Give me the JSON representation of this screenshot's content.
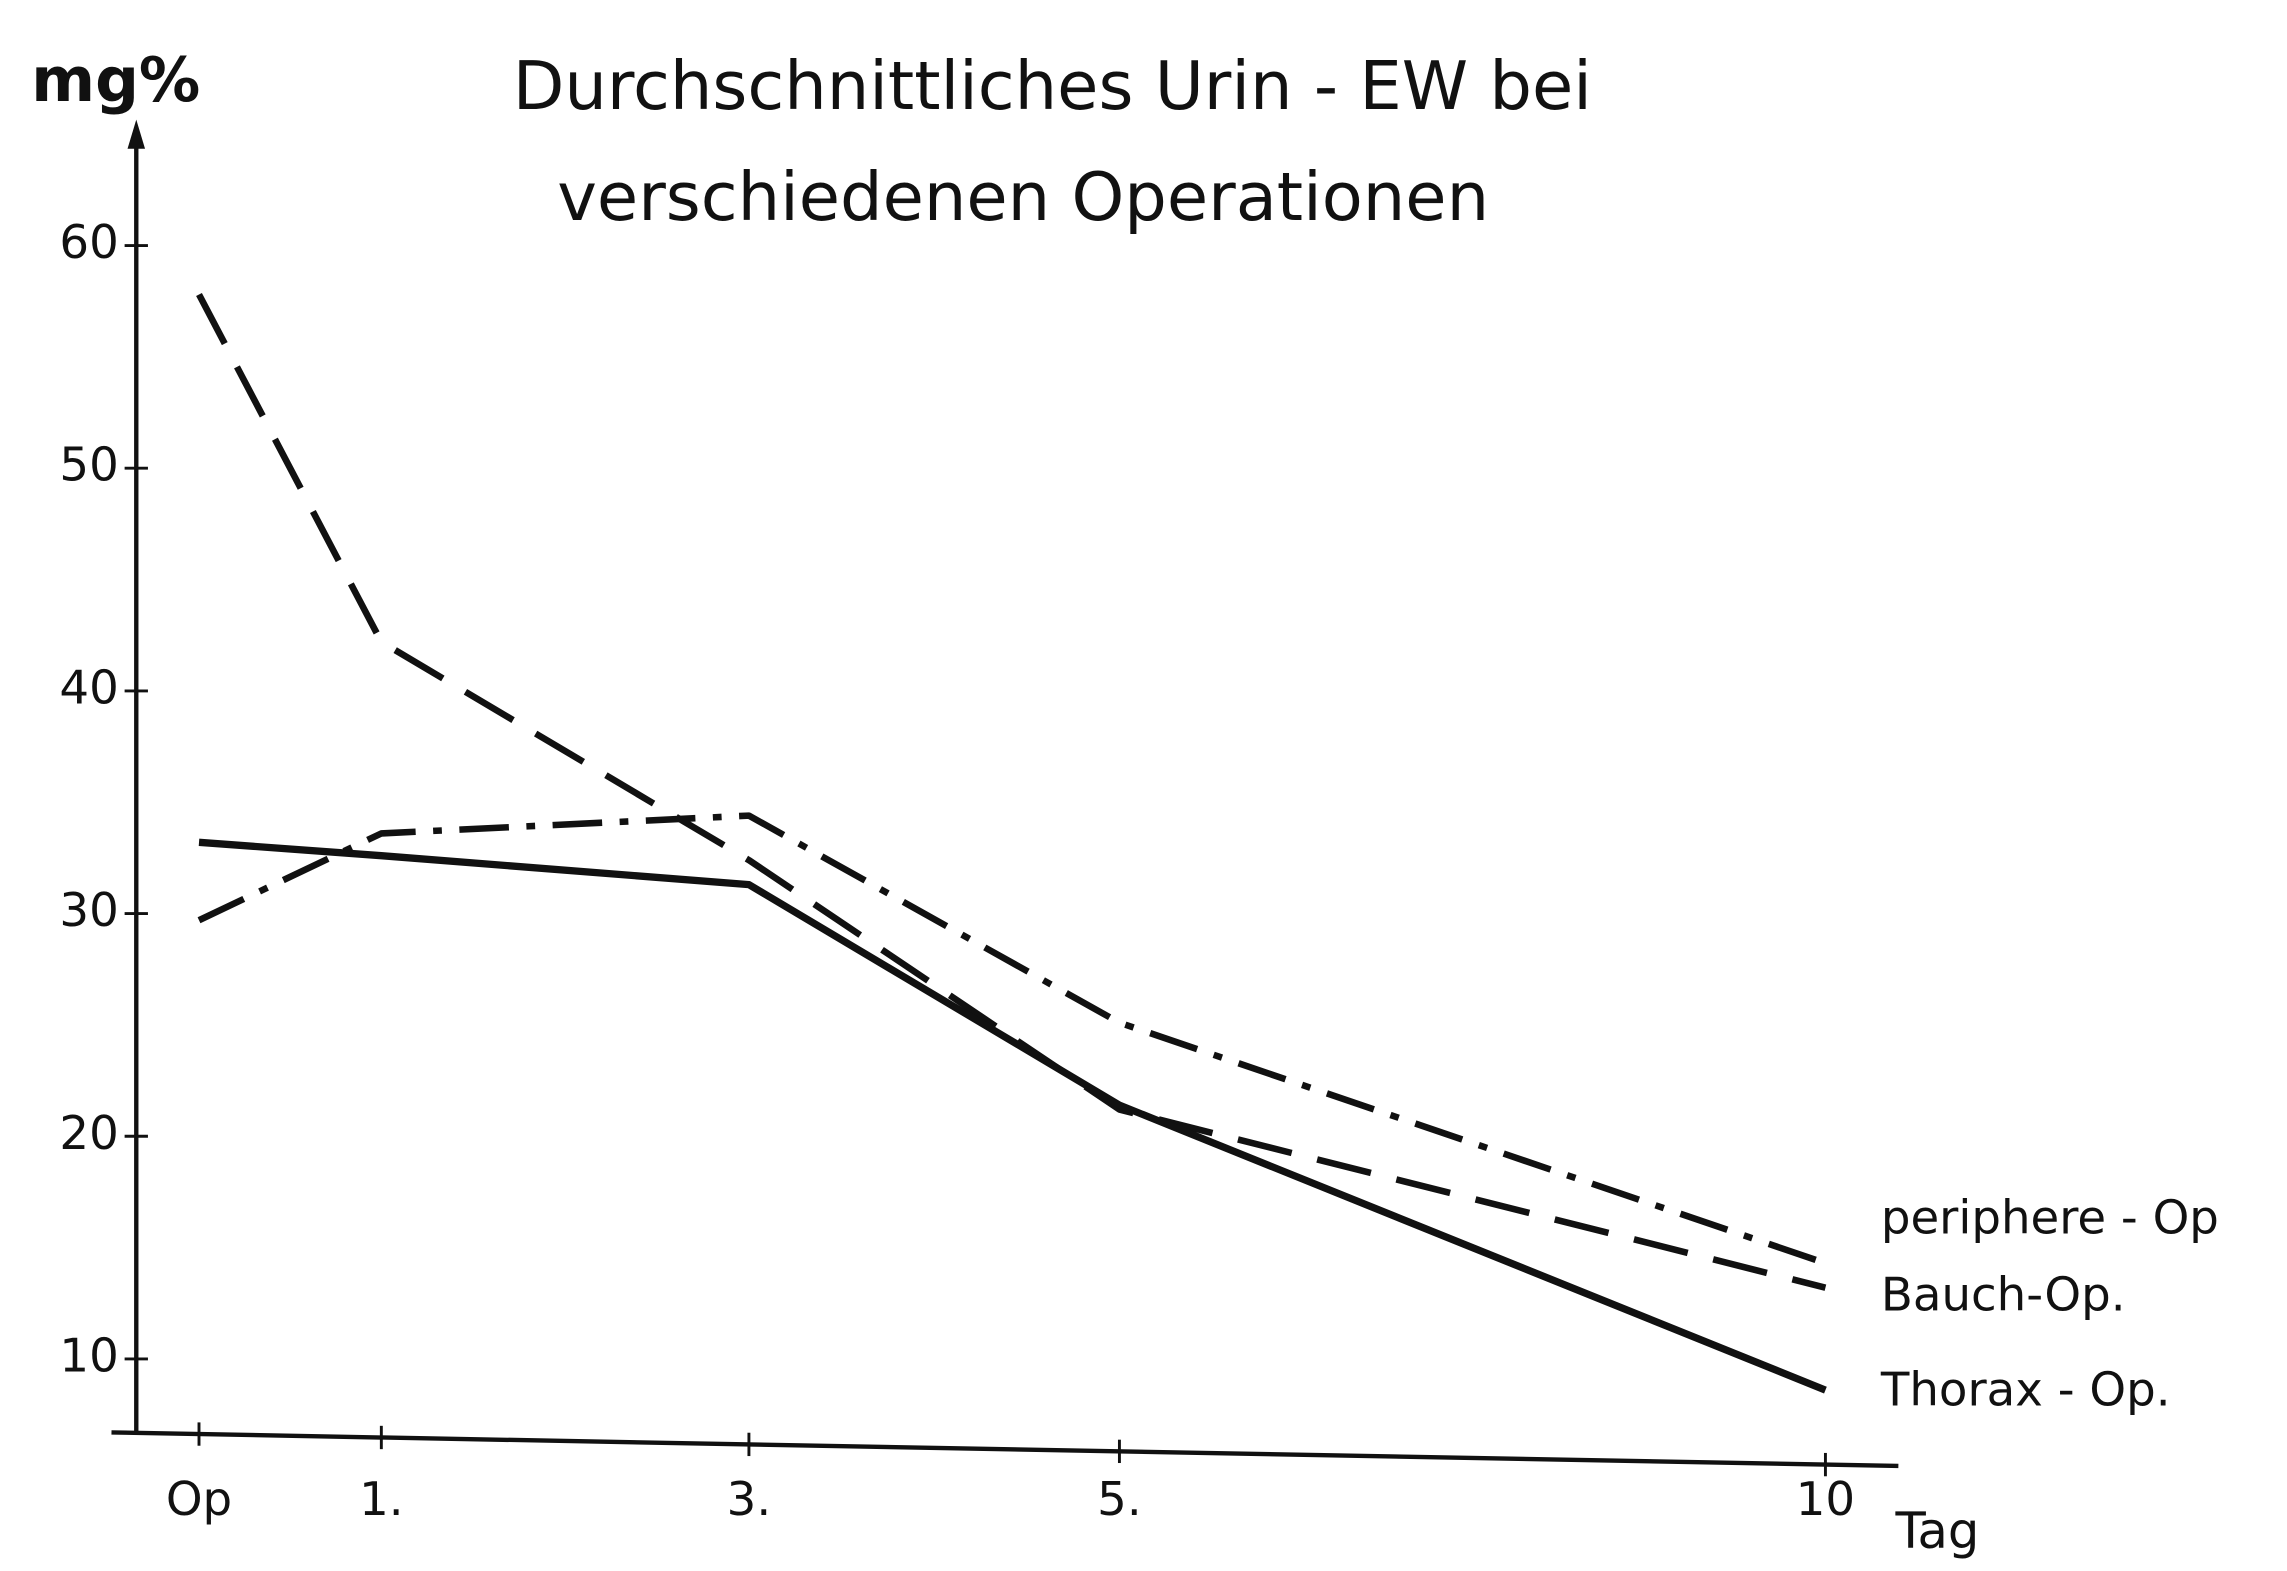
{
  "chart_data": {
    "type": "line",
    "title": [
      "Durchschnittliches Urin - EW bei",
      "verschiedenen Operationen"
    ],
    "ylabel": "mg%",
    "xlabel": "Tag",
    "categories": [
      "Op",
      "1.",
      "3.",
      "5.",
      "10"
    ],
    "series": [
      {
        "name": "periphere - Op",
        "color": "#111111",
        "dash": "dashdot",
        "values": [
          29.7,
          33.6,
          34.4,
          25.1,
          14.3
        ]
      },
      {
        "name": "Bauch-Op.",
        "color": "#111111",
        "dash": "dashed",
        "values": [
          57.8,
          42.2,
          32.4,
          21.2,
          13.2
        ]
      },
      {
        "name": "Thorax - Op.",
        "color": "#111111",
        "dash": "solid",
        "values": [
          33.2,
          32.6,
          31.3,
          21.4,
          8.6
        ]
      }
    ],
    "ylim": [
      6.7,
      65
    ],
    "yticks": [
      10,
      20,
      30,
      40,
      50,
      60
    ]
  }
}
